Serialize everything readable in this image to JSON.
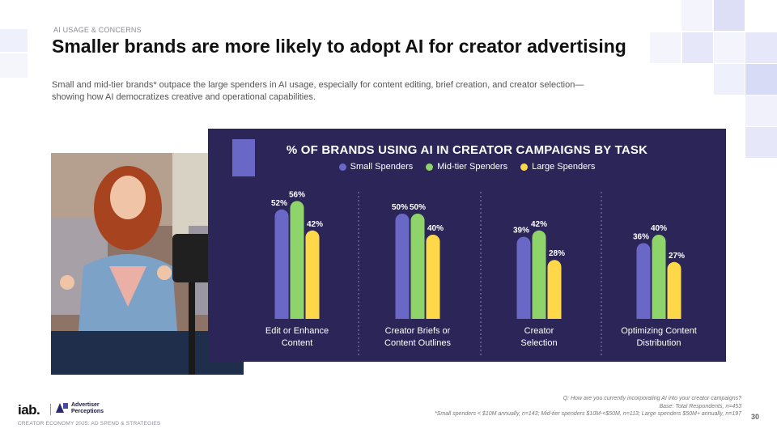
{
  "header": {
    "eyebrow": "AI USAGE & CONCERNS",
    "title": "Smaller brands are more likely to adopt AI for creator advertising",
    "subtitle": "Small and mid-tier brands* outpace the large spenders in AI usage, especially for content editing, brief creation, and creator selection—showing how AI democratizes creative and operational capabilities."
  },
  "photo": {
    "icon": "woman-filming-video-photo"
  },
  "colors": {
    "panel": "#2b2657",
    "small": "#6a68c7",
    "mid": "#8fd36b",
    "large": "#ffd84a"
  },
  "chart_data": {
    "type": "bar",
    "title": "% OF BRANDS USING AI IN CREATOR CAMPAIGNS BY TASK",
    "categories": [
      "Edit or Enhance Content",
      "Creator Briefs or Content Outlines",
      "Creator Selection",
      "Optimizing Content Distribution"
    ],
    "category_lines": [
      [
        "Edit or Enhance",
        "Content"
      ],
      [
        "Creator Briefs or",
        "Content Outlines"
      ],
      [
        "Creator",
        "Selection"
      ],
      [
        "Optimizing Content",
        "Distribution"
      ]
    ],
    "series": [
      {
        "name": "Small Spenders",
        "color": "#6a68c7",
        "values": [
          52,
          50,
          39,
          36
        ],
        "labels": [
          "52%",
          "50%",
          "39%",
          "36%"
        ]
      },
      {
        "name": "Mid-tier Spenders",
        "color": "#8fd36b",
        "values": [
          56,
          50,
          42,
          40
        ],
        "labels": [
          "56%",
          "50%",
          "42%",
          "40%"
        ]
      },
      {
        "name": "Large Spenders",
        "color": "#ffd84a",
        "values": [
          42,
          40,
          28,
          27
        ],
        "labels": [
          "42%",
          "40%",
          "28%",
          "27%"
        ]
      }
    ],
    "ylim": [
      0,
      60
    ],
    "grid": false,
    "legend": "top-center"
  },
  "footer": {
    "brand": "iab.",
    "partner_line1": "Advertiser",
    "partner_line2": "Perceptions",
    "report": "CREATOR ECONOMY 2025: AD SPEND & STRATEGIES",
    "question": "Q: How are you currently incorporating AI into your creator campaigns?",
    "base": "Base: Total Respondents, n=453",
    "definition": "*Small spenders < $10M annually, n=143; Mid-tier spenders $10M-<$50M, n=113; Large spenders $50M+ annually, n=197",
    "page": "30"
  }
}
